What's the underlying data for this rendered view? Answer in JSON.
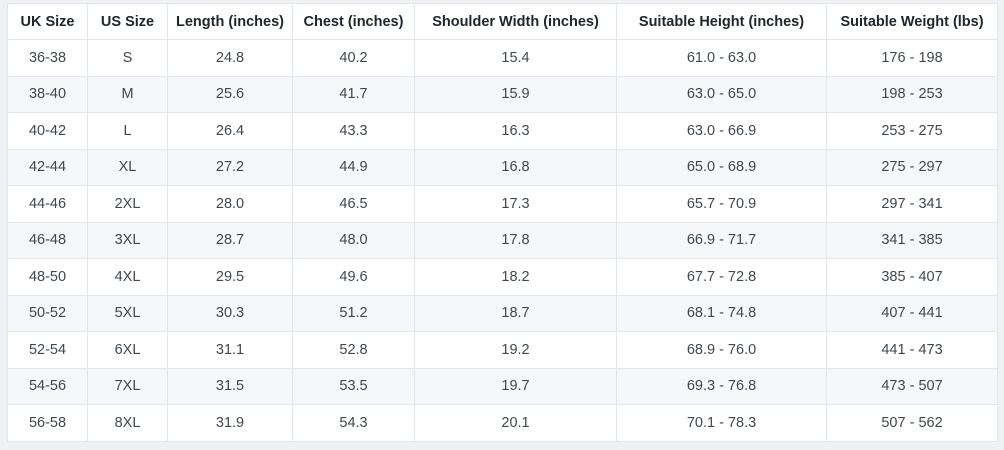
{
  "table": {
    "columns": [
      "UK Size",
      "US Size",
      "Length (inches)",
      "Chest (inches)",
      "Shoulder Width (inches)",
      "Suitable Height (inches)",
      "Suitable Weight (lbs)"
    ],
    "rows": [
      [
        "36-38",
        "S",
        "24.8",
        "40.2",
        "15.4",
        "61.0 - 63.0",
        "176 - 198"
      ],
      [
        "38-40",
        "M",
        "25.6",
        "41.7",
        "15.9",
        "63.0 - 65.0",
        "198 - 253"
      ],
      [
        "40-42",
        "L",
        "26.4",
        "43.3",
        "16.3",
        "63.0 - 66.9",
        "253 - 275"
      ],
      [
        "42-44",
        "XL",
        "27.2",
        "44.9",
        "16.8",
        "65.0 - 68.9",
        "275 - 297"
      ],
      [
        "44-46",
        "2XL",
        "28.0",
        "46.5",
        "17.3",
        "65.7 - 70.9",
        "297 - 341"
      ],
      [
        "46-48",
        "3XL",
        "28.7",
        "48.0",
        "17.8",
        "66.9 - 71.7",
        "341 - 385"
      ],
      [
        "48-50",
        "4XL",
        "29.5",
        "49.6",
        "18.2",
        "67.7 - 72.8",
        "385 - 407"
      ],
      [
        "50-52",
        "5XL",
        "30.3",
        "51.2",
        "18.7",
        "68.1 - 74.8",
        "407 - 441"
      ],
      [
        "52-54",
        "6XL",
        "31.1",
        "52.8",
        "19.2",
        "68.9 - 76.0",
        "441 - 473"
      ],
      [
        "54-56",
        "7XL",
        "31.5",
        "53.5",
        "19.7",
        "69.3 - 76.8",
        "473 - 507"
      ],
      [
        "56-58",
        "8XL",
        "31.9",
        "54.3",
        "20.1",
        "70.1 - 78.3",
        "507 - 562"
      ]
    ],
    "colors": {
      "page_background": "#eff1f3",
      "row_odd_background": "#ffffff",
      "row_even_background": "#f5f7f9",
      "border": "#e2e5e9",
      "header_text": "#21262b",
      "cell_text": "#41474d"
    }
  }
}
